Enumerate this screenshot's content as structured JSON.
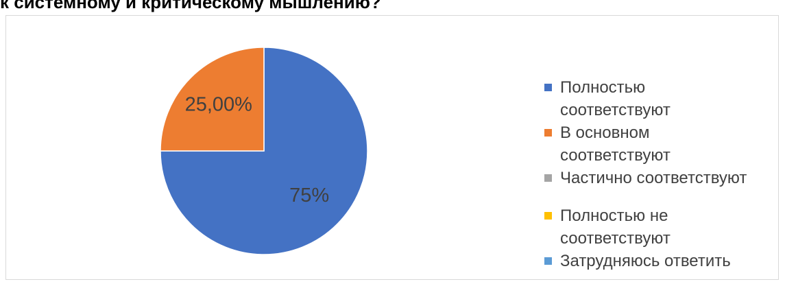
{
  "chart_data": {
    "type": "pie",
    "title": "к системному и критическому мышлению?",
    "slices": [
      {
        "label": "Полностью\nсоответствуют",
        "value": 75,
        "display": "75%",
        "color": "#4472C4"
      },
      {
        "label": "В основном\nсоответствуют",
        "value": 25,
        "display": "25,00%",
        "color": "#ED7D31"
      },
      {
        "label": "Частично соответствуют",
        "value": 0,
        "display": "",
        "color": "#A5A5A5"
      },
      {
        "label": "Полностью не\nсоответствуют",
        "value": 0,
        "display": "",
        "color": "#FFC000"
      },
      {
        "label": "Затрудняюсь ответить",
        "value": 0,
        "display": "",
        "color": "#5B9BD5"
      }
    ],
    "legend_position": "right",
    "start_angle": 0,
    "direction": "clockwise"
  }
}
